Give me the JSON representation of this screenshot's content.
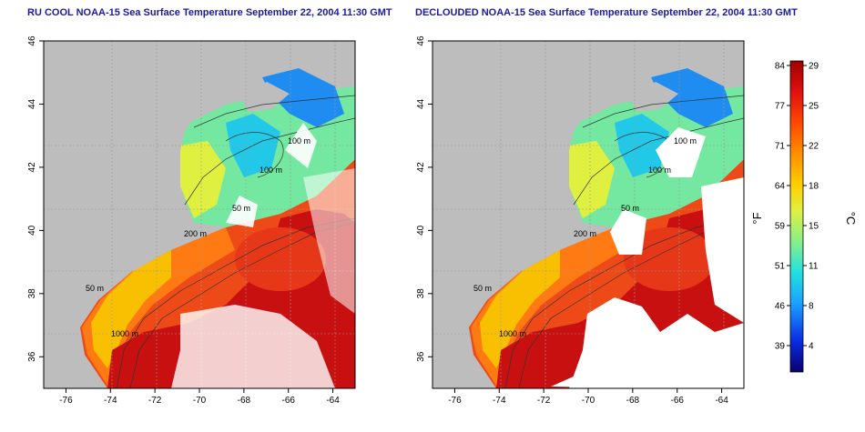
{
  "panels": [
    {
      "title": "RU COOL NOAA-15 Sea Surface Temperature September 22, 2004 11:30 GMT"
    },
    {
      "title": "DECLOUDED NOAA-15 Sea Surface Temperature September 22, 2004 11:30 GMT"
    }
  ],
  "axes": {
    "longitude_ticks": [
      "-76",
      "-74",
      "-72",
      "-70",
      "-68",
      "-66",
      "-64"
    ],
    "latitude_ticks": [
      "36",
      "38",
      "40",
      "42",
      "44",
      "46"
    ],
    "xlim": [
      -77,
      -63
    ],
    "ylim": [
      35,
      46
    ]
  },
  "contours": {
    "label_100": "100 m",
    "label_50": "50 m",
    "label_200": "200 m",
    "label_1000": "1000 m"
  },
  "colorbar": {
    "fahrenheit_ticks": [
      "84",
      "77",
      "71",
      "64",
      "59",
      "51",
      "46",
      "39"
    ],
    "celsius_ticks": [
      "29",
      "25",
      "22",
      "18",
      "15",
      "11",
      "8",
      "4"
    ],
    "fahrenheit_unit": "°F",
    "celsius_unit": "°C",
    "colors": [
      "#08006e",
      "#0a2ce0",
      "#1aa0ff",
      "#22e0e0",
      "#88f088",
      "#e0f040",
      "#ffd000",
      "#ff9000",
      "#ff4a00",
      "#e01010",
      "#a00000"
    ]
  },
  "colors": {
    "land": "#bdbdbd",
    "clouds": "#ffffff",
    "cold_shelf": "#1e8cf0",
    "cool_shelf": "#74e8a0",
    "mid_shelf": "#f8e000",
    "warm_shelf": "#ff7a12",
    "gulf_stream": "#c81010",
    "slope_water": "#ee4a18",
    "title_blue": "#1a1aa0"
  }
}
